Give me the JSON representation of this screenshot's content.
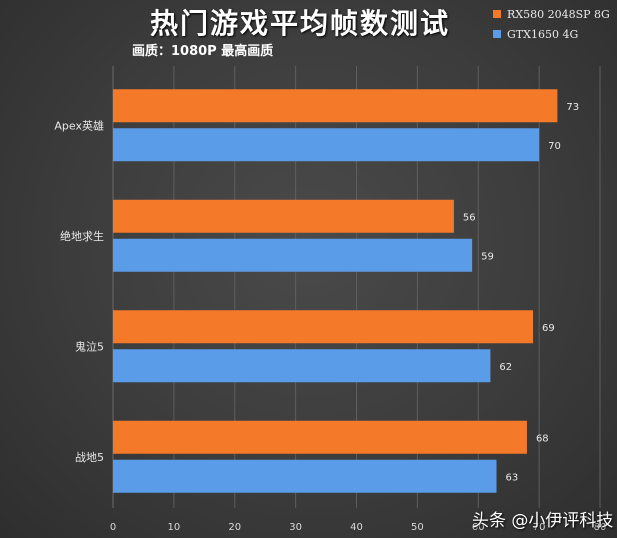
{
  "header": {
    "title": "热门游戏平均帧数测试",
    "subtitle": "画质：1080P 最高画质"
  },
  "watermark": "头条 @小伊评科技",
  "colors": {
    "series_1": "#f47a2a",
    "series_2": "#5a9ce8",
    "grid": "#5e5e5e"
  },
  "chart_data": {
    "type": "bar",
    "orientation": "horizontal",
    "title": "热门游戏平均帧数测试",
    "subtitle": "画质：1080P 最高画质",
    "categories": [
      "Apex英雄",
      "绝地求生",
      "鬼泣5",
      "战地5"
    ],
    "series": [
      {
        "name": "RX580 2048SP 8G",
        "values": [
          73,
          56,
          69,
          68
        ]
      },
      {
        "name": "GTX1650 4G",
        "values": [
          70,
          59,
          62,
          63
        ]
      }
    ],
    "xlim": [
      0,
      80
    ],
    "xticks": [
      0,
      10,
      20,
      30,
      40,
      50,
      60,
      70,
      80
    ],
    "xlabel": "",
    "ylabel": "",
    "grid": true,
    "legend_position": "top-right",
    "data_labels": true
  }
}
